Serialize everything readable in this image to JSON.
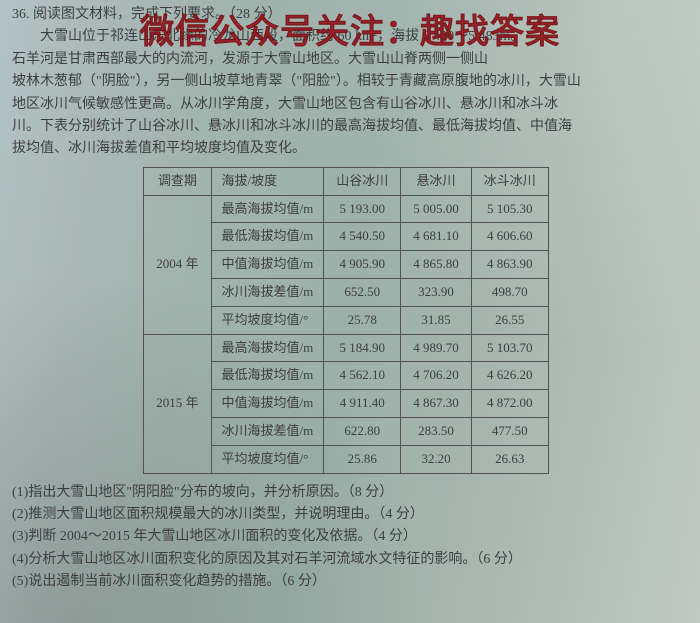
{
  "watermark": {
    "text": "微信公众号关注：趣找答案",
    "color": "#9e1820"
  },
  "passage": {
    "l1": "36. 阅读图文材料，完成下列要求。（28 分）",
    "l2": "　　大雪山位于祁连山东北缘的冷龙山西段，面积约 60 km²，海拔 6 400～5 483m。",
    "l3": "石羊河是甘肃西部最大的内流河，发源于大雪山地区。大雪山山脊两侧一侧山",
    "l4": "坡林木葱郁（\"阴脸\"），另一侧山坡草地青翠（\"阳脸\"）。相较于青藏高原腹地的冰川，大雪山",
    "l5": "地区冰川气候敏感性更高。从冰川学角度，大雪山地区包含有山谷冰川、悬冰川和冰斗冰",
    "l6": "川。下表分别统计了山谷冰川、悬冰川和冰斗冰川的最高海拔均值、最低海拔均值、中值海",
    "l7": "拔均值、冰川海拔差值和平均坡度均值及变化。"
  },
  "table": {
    "headers": {
      "period": "调查期",
      "metric": "海拔/坡度",
      "c1": "山谷冰川",
      "c2": "悬冰川",
      "c3": "冰斗冰川"
    },
    "years": [
      "2004 年",
      "2015 年"
    ],
    "metrics": [
      "最高海拔均值/m",
      "最低海拔均值/m",
      "中值海拔均值/m",
      "冰川海拔差值/m",
      "平均坡度均值/°"
    ],
    "data2004": [
      [
        "5 193.00",
        "5 005.00",
        "5 105.30"
      ],
      [
        "4 540.50",
        "4 681.10",
        "4 606.60"
      ],
      [
        "4 905.90",
        "4 865.80",
        "4 863.90"
      ],
      [
        "652.50",
        "323.90",
        "498.70"
      ],
      [
        "25.78",
        "31.85",
        "26.55"
      ]
    ],
    "data2015": [
      [
        "5 184.90",
        "4 989.70",
        "5 103.70"
      ],
      [
        "4 562.10",
        "4 706.20",
        "4 626.20"
      ],
      [
        "4 911.40",
        "4 867.30",
        "4 872.00"
      ],
      [
        "622.80",
        "283.50",
        "477.50"
      ],
      [
        "25.86",
        "32.20",
        "26.63"
      ]
    ]
  },
  "questions": {
    "q1": "(1)指出大雪山地区\"阴阳脸\"分布的坡向，并分析原因。（8 分）",
    "q2": "(2)推测大雪山地区面积规模最大的冰川类型，并说明理由。（4 分）",
    "q3": "(3)判断 2004～2015 年大雪山地区冰川面积的变化及依据。（4 分）",
    "q4": "(4)分析大雪山地区冰川面积变化的原因及其对石羊河流域水文特征的影响。（6 分）",
    "q5": "(5)说出遏制当前冰川面积变化趋势的措施。（6 分）"
  }
}
